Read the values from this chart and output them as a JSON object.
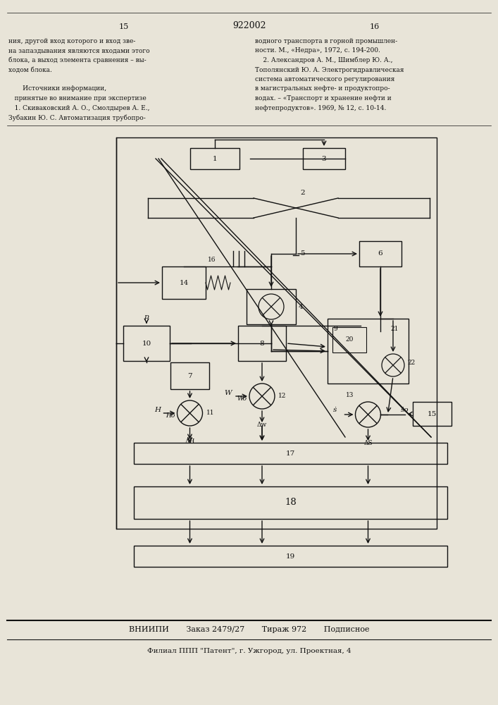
{
  "bg_color": "#e8e4d8",
  "text_color": "#111111",
  "page_left": "15",
  "page_center": "922002",
  "page_right": "16",
  "text_left": "ния, другой вход которого и вход зве-\nна запаздывания являются входами этого\nблока, а выход элемента сравнения – вы-\nходом блока.\n\n        Источники информации,\n    принятые во внимание при экспертизе\n    1. Скиваковский А. О., Смолдырев А. Е.,\nЗубакин Ю. С. Автоматизация трубопро-",
  "text_right": "водного транспорта в горной промышлен-\nности. М., «Недра», 1972, с. 194-200.\n    2. Александров А. М., Шимблер Ю. А.,\nТополянский Ю. А. Электрогидравлическая\nсистема автоматического регулирования\nв магистральных нефте- и продуктопро-\nводах. – «Транспорт и хранение нефти и\nнефтепродуктов». 1969, № 12, с. 10-14.",
  "footer1": "ВНИИПИ       Заказ 2479/27       Тираж 972       Подписное",
  "footer2": "Филиал ППП \"Патент\", г. Ужгород, ул. Проектная, 4",
  "lw": 1.0
}
